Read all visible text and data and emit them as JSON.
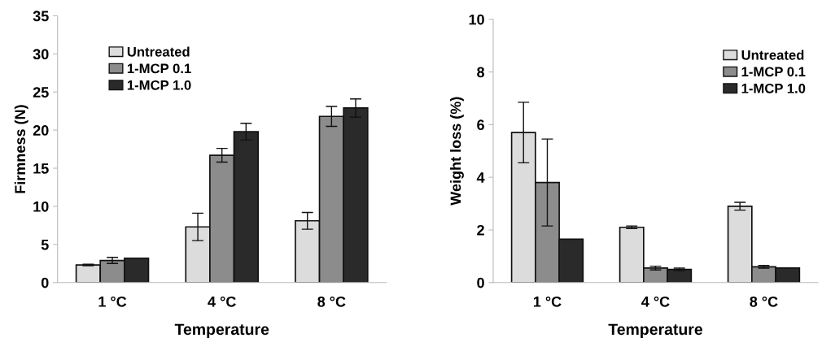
{
  "chart_data": [
    {
      "type": "bar",
      "xlabel": "Temperature",
      "ylabel": "Firmness (N)",
      "categories": [
        "1 °C",
        "4 °C",
        "8 °C"
      ],
      "ylim": [
        0,
        35
      ],
      "yticks": [
        0,
        5,
        10,
        15,
        20,
        25,
        30,
        35
      ],
      "grid": false,
      "legend": "top left",
      "series": [
        {
          "name": "Untreated",
          "color": "#dcdcdc",
          "values": [
            2.3,
            7.3,
            8.1
          ],
          "errors": [
            0.1,
            1.8,
            1.1
          ]
        },
        {
          "name": "1-MCP 0.1",
          "color": "#8c8c8c",
          "values": [
            2.9,
            16.7,
            21.8
          ],
          "errors": [
            0.4,
            0.9,
            1.3
          ]
        },
        {
          "name": "1-MCP 1.0",
          "color": "#2a2a2a",
          "values": [
            3.2,
            19.8,
            22.9
          ],
          "errors": [
            null,
            1.1,
            1.2
          ]
        }
      ]
    },
    {
      "type": "bar",
      "xlabel": "Temperature",
      "ylabel": "Weight loss (%)",
      "categories": [
        "1 °C",
        "4 °C",
        "8 °C"
      ],
      "ylim": [
        0,
        10
      ],
      "yticks": [
        0,
        2,
        4,
        6,
        8,
        10
      ],
      "grid": false,
      "legend": "top right",
      "series": [
        {
          "name": "Untreated",
          "color": "#dcdcdc",
          "values": [
            5.7,
            2.1,
            2.9
          ],
          "errors": [
            1.15,
            0.05,
            0.15
          ]
        },
        {
          "name": "1-MCP 0.1",
          "color": "#8c8c8c",
          "values": [
            3.8,
            0.55,
            0.6
          ],
          "errors": [
            1.65,
            0.07,
            0.05
          ]
        },
        {
          "name": "1-MCP 1.0",
          "color": "#2a2a2a",
          "values": [
            1.65,
            0.5,
            0.55
          ],
          "errors": [
            null,
            0.05,
            null
          ]
        }
      ]
    }
  ]
}
